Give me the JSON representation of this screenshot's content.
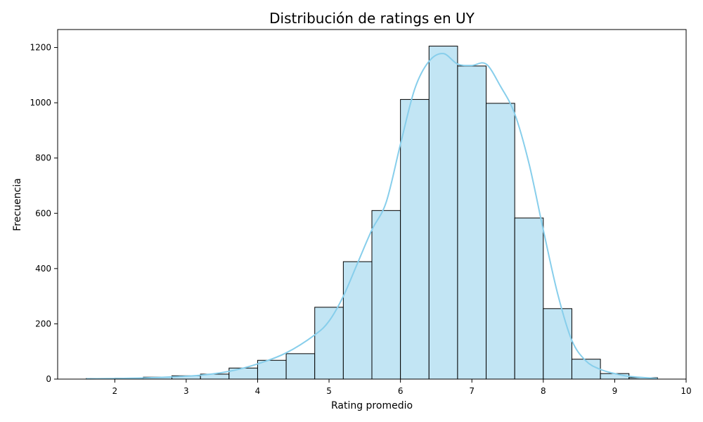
{
  "chart_data": {
    "type": "bar",
    "title": "Distribución de ratings en UY",
    "xlabel": "Rating promedio",
    "ylabel": "Frecuencia",
    "xlim": [
      1.2,
      10
    ],
    "ylim": [
      0,
      1265
    ],
    "xticks": [
      2,
      3,
      4,
      5,
      6,
      7,
      8,
      9,
      10
    ],
    "yticks": [
      0,
      200,
      400,
      600,
      800,
      1000,
      1200
    ],
    "bins": [
      {
        "x0": 1.6,
        "x1": 2.0,
        "value": 2
      },
      {
        "x0": 2.0,
        "x1": 2.4,
        "value": 3
      },
      {
        "x0": 2.4,
        "x1": 2.8,
        "value": 7
      },
      {
        "x0": 2.8,
        "x1": 3.2,
        "value": 12
      },
      {
        "x0": 3.2,
        "x1": 3.6,
        "value": 18
      },
      {
        "x0": 3.6,
        "x1": 4.0,
        "value": 40
      },
      {
        "x0": 4.0,
        "x1": 4.4,
        "value": 68
      },
      {
        "x0": 4.4,
        "x1": 4.8,
        "value": 92
      },
      {
        "x0": 4.8,
        "x1": 5.2,
        "value": 260
      },
      {
        "x0": 5.2,
        "x1": 5.6,
        "value": 425
      },
      {
        "x0": 5.6,
        "x1": 6.0,
        "value": 610
      },
      {
        "x0": 6.0,
        "x1": 6.4,
        "value": 1012
      },
      {
        "x0": 6.4,
        "x1": 6.8,
        "value": 1205
      },
      {
        "x0": 6.8,
        "x1": 7.2,
        "value": 1133
      },
      {
        "x0": 7.2,
        "x1": 7.6,
        "value": 998
      },
      {
        "x0": 7.6,
        "x1": 8.0,
        "value": 583
      },
      {
        "x0": 8.0,
        "x1": 8.4,
        "value": 255
      },
      {
        "x0": 8.4,
        "x1": 8.8,
        "value": 72
      },
      {
        "x0": 8.8,
        "x1": 9.2,
        "value": 20
      },
      {
        "x0": 9.2,
        "x1": 9.6,
        "value": 5
      }
    ],
    "kde": {
      "x": [
        1.6,
        2.0,
        2.4,
        2.8,
        3.2,
        3.6,
        4.0,
        4.4,
        4.8,
        5.0,
        5.2,
        5.4,
        5.6,
        5.8,
        6.0,
        6.2,
        6.4,
        6.6,
        6.8,
        7.0,
        7.2,
        7.4,
        7.6,
        7.8,
        8.0,
        8.2,
        8.4,
        8.6,
        8.8,
        9.0,
        9.2,
        9.6
      ],
      "y": [
        1,
        2,
        4,
        8,
        14,
        28,
        55,
        95,
        160,
        210,
        300,
        420,
        540,
        640,
        850,
        1050,
        1150,
        1178,
        1140,
        1135,
        1140,
        1060,
        960,
        780,
        540,
        310,
        140,
        65,
        35,
        20,
        10,
        2
      ]
    },
    "colors": {
      "bar_fill": "#c2e5f4",
      "bar_edge": "#000000",
      "kde": "#87ceeb"
    },
    "grid": false,
    "legend": "none"
  }
}
